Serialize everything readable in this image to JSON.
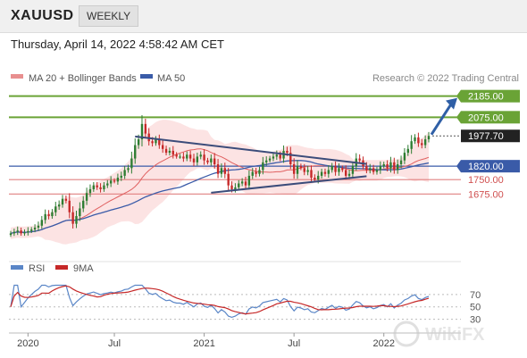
{
  "header": {
    "symbol": "XAUUSD",
    "timeframe": "WEEKLY",
    "datetime": "Thursday, April 14, 2022 4:58:42 AM CET"
  },
  "watermark": "WikiFX",
  "colors": {
    "ma20": "#e06060",
    "bollinger_fill": "#fbd9d9",
    "ma50": "#3a5ba8",
    "bull_candle": "#2e7d32",
    "bear_candle": "#c62828",
    "resistance": "#6aa336",
    "pivot": "#3a5ba8",
    "support": "#e08080",
    "current": "#222222",
    "trendline": "#3b4c7a",
    "forecast_arrow": "#2f5fa6",
    "rsi": "#5a86c7",
    "rsi_ma": "#c62828"
  },
  "chart_data": [
    {
      "type": "candlestick",
      "panel": "price",
      "legend": [
        {
          "label": "MA 20 + Bollinger Bands",
          "key": "ma20"
        },
        {
          "label": "MA 50",
          "key": "ma50"
        }
      ],
      "credit": "Research © 2022 Trading Central",
      "x_ticks": [
        "2020",
        "Jul",
        "2021",
        "Jul",
        "2022"
      ],
      "x_tick_index": [
        5,
        30,
        56,
        82,
        108
      ],
      "ylim": [
        1430,
        2230
      ],
      "levels": [
        {
          "value": 2185.0,
          "label": "2185.00",
          "role": "resistance"
        },
        {
          "value": 2075.0,
          "label": "2075.00",
          "role": "resistance"
        },
        {
          "value": 1977.7,
          "label": "1977.70",
          "role": "current"
        },
        {
          "value": 1820.0,
          "label": "1820.00",
          "role": "pivot"
        },
        {
          "value": 1750.0,
          "label": "1750.00",
          "role": "support"
        },
        {
          "value": 1675.0,
          "label": "1675.00",
          "role": "support"
        }
      ],
      "close": [
        1470,
        1478,
        1485,
        1470,
        1475,
        1482,
        1490,
        1500,
        1510,
        1540,
        1570,
        1560,
        1580,
        1610,
        1620,
        1650,
        1640,
        1580,
        1520,
        1560,
        1600,
        1640,
        1680,
        1700,
        1720,
        1710,
        1700,
        1720,
        1730,
        1745,
        1740,
        1760,
        1770,
        1800,
        1810,
        1860,
        1930,
        1960,
        2040,
        1990,
        1950,
        1940,
        1960,
        1930,
        1910,
        1890,
        1900,
        1880,
        1870,
        1870,
        1860,
        1880,
        1860,
        1840,
        1870,
        1880,
        1850,
        1840,
        1860,
        1830,
        1780,
        1810,
        1780,
        1720,
        1700,
        1710,
        1730,
        1740,
        1720,
        1770,
        1790,
        1780,
        1800,
        1840,
        1850,
        1860,
        1870,
        1880,
        1860,
        1900,
        1890,
        1830,
        1780,
        1820,
        1810,
        1790,
        1800,
        1760,
        1750,
        1770,
        1790,
        1780,
        1800,
        1820,
        1790,
        1810,
        1800,
        1770,
        1780,
        1820,
        1860,
        1850,
        1820,
        1800,
        1810,
        1790,
        1800,
        1820,
        1830,
        1810,
        1840,
        1800,
        1830,
        1850,
        1890,
        1910,
        1950,
        1970,
        1940,
        1930,
        1960,
        1977.7
      ]
    },
    {
      "type": "line",
      "panel": "rsi",
      "legend": [
        {
          "label": "RSI",
          "key": "rsi"
        },
        {
          "label": "9MA",
          "key": "rsi_ma"
        }
      ],
      "y_ticks": [
        70,
        50,
        30
      ],
      "ylim": [
        15,
        90
      ]
    }
  ]
}
